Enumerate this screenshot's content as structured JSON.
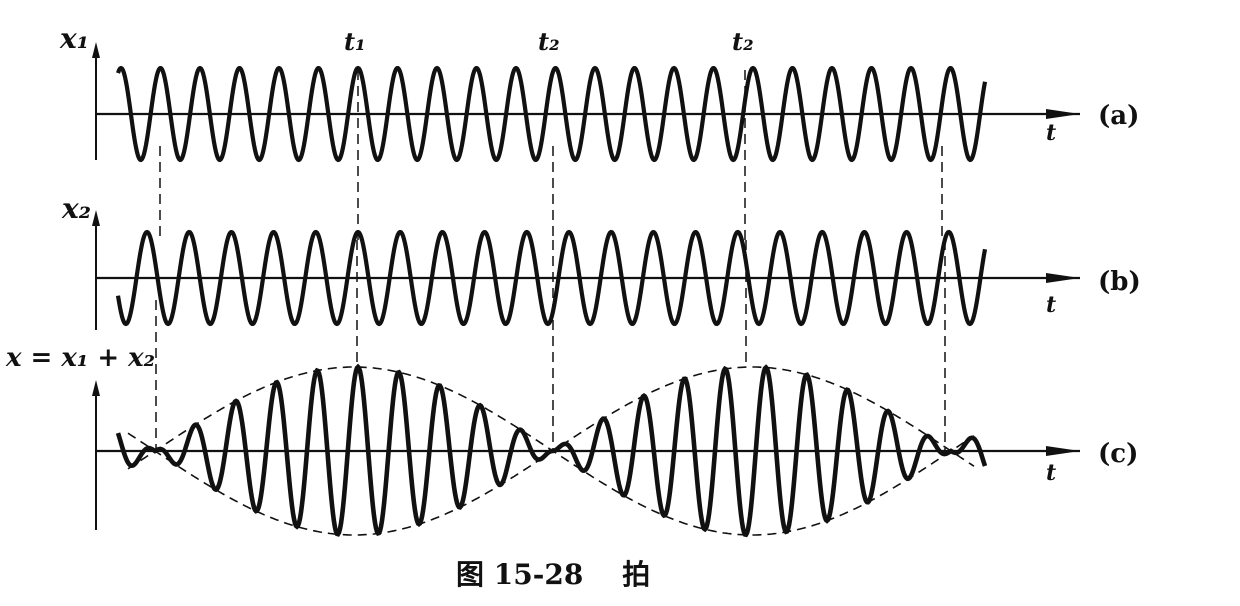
{
  "figure": {
    "caption": "图 15-28    拍",
    "panels": [
      {
        "id": "a",
        "tag": "(a)",
        "ylabel": "x₁",
        "xlabel": "t"
      },
      {
        "id": "b",
        "tag": "(b)",
        "ylabel": "x₂",
        "xlabel": "t"
      },
      {
        "id": "c",
        "tag": "(c)",
        "ylabel": "x = x₁ + x₂",
        "xlabel": "t"
      }
    ],
    "time_marks": [
      "t₁",
      "t₂",
      "t₂"
    ],
    "colors": {
      "ink": "#111111",
      "background": "#ffffff"
    }
  }
}
